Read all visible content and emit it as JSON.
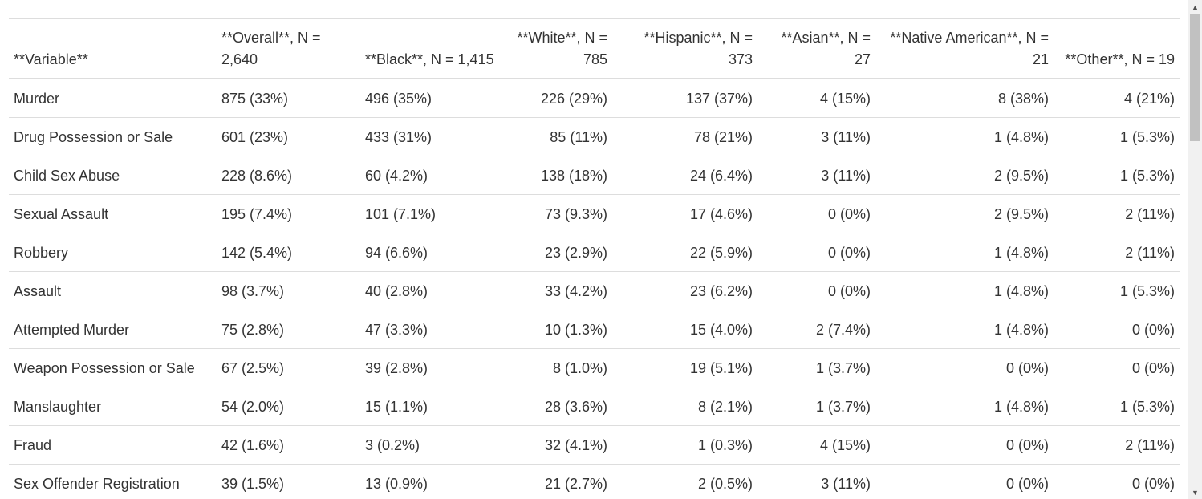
{
  "table": {
    "headers": [
      "**Variable**",
      "**Overall**, N = 2,640",
      "**Black**, N = 1,415",
      "**White**, N = 785",
      "**Hispanic**, N = 373",
      "**Asian**, N = 27",
      "**Native American**, N = 21",
      "**Other**, N = 19"
    ],
    "rows": [
      [
        "Murder",
        "875 (33%)",
        "496 (35%)",
        "226 (29%)",
        "137 (37%)",
        "4 (15%)",
        "8 (38%)",
        "4 (21%)"
      ],
      [
        "Drug Possession or Sale",
        "601 (23%)",
        "433 (31%)",
        "85 (11%)",
        "78 (21%)",
        "3 (11%)",
        "1 (4.8%)",
        "1 (5.3%)"
      ],
      [
        "Child Sex Abuse",
        "228 (8.6%)",
        "60 (4.2%)",
        "138 (18%)",
        "24 (6.4%)",
        "3 (11%)",
        "2 (9.5%)",
        "1 (5.3%)"
      ],
      [
        "Sexual Assault",
        "195 (7.4%)",
        "101 (7.1%)",
        "73 (9.3%)",
        "17 (4.6%)",
        "0 (0%)",
        "2 (9.5%)",
        "2 (11%)"
      ],
      [
        "Robbery",
        "142 (5.4%)",
        "94 (6.6%)",
        "23 (2.9%)",
        "22 (5.9%)",
        "0 (0%)",
        "1 (4.8%)",
        "2 (11%)"
      ],
      [
        "Assault",
        "98 (3.7%)",
        "40 (2.8%)",
        "33 (4.2%)",
        "23 (6.2%)",
        "0 (0%)",
        "1 (4.8%)",
        "1 (5.3%)"
      ],
      [
        "Attempted Murder",
        "75 (2.8%)",
        "47 (3.3%)",
        "10 (1.3%)",
        "15 (4.0%)",
        "2 (7.4%)",
        "1 (4.8%)",
        "0 (0%)"
      ],
      [
        "Weapon Possession or Sale",
        "67 (2.5%)",
        "39 (2.8%)",
        "8 (1.0%)",
        "19 (5.1%)",
        "1 (3.7%)",
        "0 (0%)",
        "0 (0%)"
      ],
      [
        "Manslaughter",
        "54 (2.0%)",
        "15 (1.1%)",
        "28 (3.6%)",
        "8 (2.1%)",
        "1 (3.7%)",
        "1 (4.8%)",
        "1 (5.3%)"
      ],
      [
        "Fraud",
        "42 (1.6%)",
        "3 (0.2%)",
        "32 (4.1%)",
        "1 (0.3%)",
        "4 (15%)",
        "0 (0%)",
        "2 (11%)"
      ],
      [
        "Sex Offender Registration",
        "39 (1.5%)",
        "13 (0.9%)",
        "21 (2.7%)",
        "2 (0.5%)",
        "3 (11%)",
        "0 (0%)",
        "0 (0%)"
      ]
    ]
  },
  "scrollbar": {
    "up_icon": "triangle-up-icon",
    "down_icon": "triangle-down-icon"
  }
}
